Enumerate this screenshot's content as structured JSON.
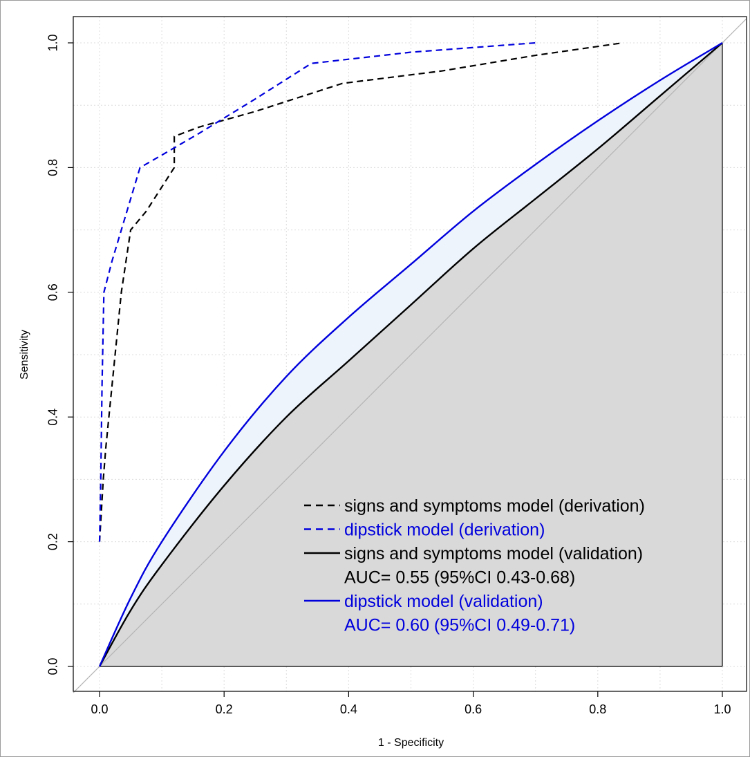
{
  "chart_data": {
    "type": "line",
    "title": "",
    "xlabel": "1 - Specificity",
    "ylabel": "Sensitivity",
    "xlim": [
      0,
      1
    ],
    "ylim": [
      0,
      1
    ],
    "x_ticks": [
      "0.0",
      "0.2",
      "0.4",
      "0.6",
      "0.8",
      "1.0"
    ],
    "y_ticks": [
      "0.0",
      "0.2",
      "0.4",
      "0.6",
      "0.8",
      "1.0"
    ],
    "grid": true,
    "legend_position": "bottom-right",
    "colors": {
      "black": "#000000",
      "blue": "#0000dd",
      "fill_gray": "#d9d9d9",
      "fill_blue": "#eef4fc",
      "diagonal": "#b4b4b4",
      "grid": "#dcdcdc"
    },
    "series": [
      {
        "name": "signs and symptoms model (derivation)",
        "style": "dashed",
        "color": "#000000",
        "points": [
          [
            0.0,
            0.2
          ],
          [
            0.003,
            0.25
          ],
          [
            0.006,
            0.3
          ],
          [
            0.01,
            0.35
          ],
          [
            0.015,
            0.4
          ],
          [
            0.025,
            0.5
          ],
          [
            0.035,
            0.6
          ],
          [
            0.05,
            0.7
          ],
          [
            0.075,
            0.73
          ],
          [
            0.12,
            0.8
          ],
          [
            0.12,
            0.85
          ],
          [
            0.16,
            0.865
          ],
          [
            0.25,
            0.89
          ],
          [
            0.39,
            0.935
          ],
          [
            0.55,
            0.955
          ],
          [
            0.7,
            0.98
          ],
          [
            0.84,
            1.0
          ]
        ]
      },
      {
        "name": "dipstick model (derivation)",
        "style": "dashed",
        "color": "#0000dd",
        "points": [
          [
            0.0,
            0.2
          ],
          [
            0.002,
            0.3
          ],
          [
            0.004,
            0.45
          ],
          [
            0.007,
            0.6
          ],
          [
            0.02,
            0.65
          ],
          [
            0.035,
            0.7
          ],
          [
            0.05,
            0.75
          ],
          [
            0.065,
            0.8
          ],
          [
            0.1,
            0.82
          ],
          [
            0.16,
            0.855
          ],
          [
            0.25,
            0.91
          ],
          [
            0.34,
            0.967
          ],
          [
            0.5,
            0.985
          ],
          [
            0.7,
            1.0
          ]
        ]
      },
      {
        "name": "signs and symptoms model (validation)",
        "style": "solid",
        "color": "#000000",
        "auc": "AUC= 0.55 (95%CI 0.43-0.68)",
        "points": [
          [
            0.0,
            0.0
          ],
          [
            0.05,
            0.09
          ],
          [
            0.1,
            0.163
          ],
          [
            0.2,
            0.29
          ],
          [
            0.3,
            0.4
          ],
          [
            0.4,
            0.49
          ],
          [
            0.5,
            0.58
          ],
          [
            0.6,
            0.67
          ],
          [
            0.7,
            0.75
          ],
          [
            0.8,
            0.83
          ],
          [
            0.9,
            0.915
          ],
          [
            1.0,
            1.0
          ]
        ]
      },
      {
        "name": "dipstick model (validation)",
        "style": "solid",
        "color": "#0000dd",
        "auc": "AUC= 0.60 (95%CI 0.49-0.71)",
        "points": [
          [
            0.0,
            0.0
          ],
          [
            0.05,
            0.11
          ],
          [
            0.1,
            0.2
          ],
          [
            0.2,
            0.345
          ],
          [
            0.3,
            0.465
          ],
          [
            0.4,
            0.56
          ],
          [
            0.5,
            0.645
          ],
          [
            0.6,
            0.73
          ],
          [
            0.7,
            0.805
          ],
          [
            0.8,
            0.875
          ],
          [
            0.9,
            0.94
          ],
          [
            1.0,
            1.0
          ]
        ]
      }
    ],
    "legend": [
      {
        "text": "signs and symptoms model (derivation)",
        "style": "dashed",
        "color": "#000000"
      },
      {
        "text": "dipstick model (derivation)",
        "style": "dashed",
        "color": "#0000dd"
      },
      {
        "text": "signs and symptoms model (validation)",
        "style": "solid",
        "color": "#000000"
      },
      {
        "text": "AUC= 0.55 (95%CI 0.43-0.68)",
        "style": "none",
        "color": "#000000"
      },
      {
        "text": "dipstick model (validation)",
        "style": "solid",
        "color": "#0000dd"
      },
      {
        "text": "AUC= 0.60 (95%CI 0.49-0.71)",
        "style": "none",
        "color": "#0000dd"
      }
    ]
  }
}
